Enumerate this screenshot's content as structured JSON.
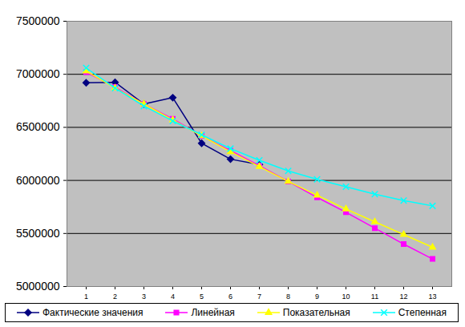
{
  "chart_data": {
    "type": "line",
    "categories": [
      "1",
      "2",
      "3",
      "4",
      "5",
      "6",
      "7",
      "8",
      "9",
      "10",
      "11",
      "12",
      "13"
    ],
    "series": [
      {
        "name": "Фактические значения",
        "color": "#000080",
        "marker": "diamond",
        "values": [
          6920000,
          6925000,
          6720000,
          6780000,
          6350000,
          6200000,
          6150000,
          null,
          null,
          null,
          null,
          null,
          null
        ]
      },
      {
        "name": "Линейная",
        "color": "#ff00ff",
        "marker": "square",
        "values": [
          7020000,
          6880000,
          6720000,
          6580000,
          6420000,
          6280000,
          6140000,
          5990000,
          5840000,
          5700000,
          5550000,
          5400000,
          5260000
        ]
      },
      {
        "name": "Показательная",
        "color": "#ffff00",
        "marker": "triangle",
        "values": [
          7030000,
          6870000,
          6720000,
          6570000,
          6420000,
          6270000,
          6130000,
          5990000,
          5860000,
          5730000,
          5610000,
          5490000,
          5370000
        ]
      },
      {
        "name": "Степенная",
        "color": "#00ffff",
        "marker": "x",
        "values": [
          7060000,
          6870000,
          6700000,
          6560000,
          6430000,
          6300000,
          6190000,
          6090000,
          6010000,
          5940000,
          5870000,
          5810000,
          5760000
        ]
      }
    ],
    "ylim": [
      5000000,
      7500000
    ],
    "yticks": [
      5000000,
      5500000,
      6000000,
      6500000,
      7000000,
      7500000
    ],
    "grid": true,
    "legend": "bottom"
  }
}
